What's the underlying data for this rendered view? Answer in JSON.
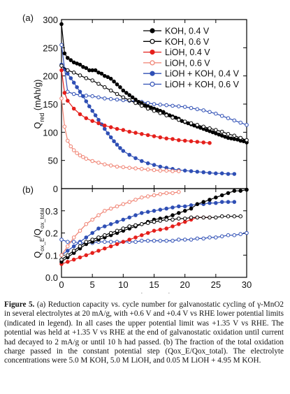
{
  "caption": {
    "label": "Figure 5.",
    "text": "(a) Reduction capacity vs. cycle number for galvanostatic cycling of γ-MnO2 in several electrolytes at 20 mA/g, with +0.6 V and +0.4 V vs RHE lower potential limits (indicated in legend). In all cases the upper potential limit was +1.35 V vs RHE. The potential was held at +1.35 V vs RHE at the end of galvanostatic oxidation until current had decayed to 2 mA/g or until 10 h had passed. (b) The fraction of the total oxidation charge passed in the constant potential step (Qox_E/Qox_total). The electrolyte concentrations were 5.0 M KOH, 5.0 M LiOH, and 0.05 M LiOH + 4.95 M KOH."
  },
  "chart_data": [
    {
      "type": "line",
      "panel_label": "(a)",
      "ylabel": "Q_red (mAh/g)",
      "xlabel": "",
      "xlim": [
        0,
        30
      ],
      "ylim": [
        0,
        300
      ],
      "yticks": [
        0,
        50,
        100,
        150,
        200,
        250,
        300
      ],
      "xticks": [
        0,
        5,
        10,
        15,
        20,
        25,
        30
      ],
      "legend_position": "top-right",
      "series": [
        {
          "name": "KOH, 0.4 V",
          "color": "#000000",
          "marker": "filled",
          "x": [
            0,
            0.5,
            1,
            1.5,
            2,
            2.5,
            3,
            3.5,
            4,
            4.5,
            5,
            5.5,
            6,
            6.5,
            7,
            7.5,
            8,
            8.5,
            9,
            9.5,
            10,
            10.5,
            11,
            11.5,
            12,
            12.5,
            13,
            13.5,
            14,
            14.5,
            15,
            15.5,
            16,
            16.5,
            17,
            17.5,
            18,
            18.5,
            19,
            19.5,
            20,
            20.5,
            21,
            21.5,
            22,
            22.5,
            23,
            23.5,
            24,
            24.5,
            25,
            25.5,
            26,
            26.5,
            27,
            27.5,
            28,
            28.5,
            29,
            29.5,
            30
          ],
          "y": [
            292,
            240,
            232,
            228,
            224,
            222,
            220,
            216,
            214,
            210,
            210,
            210,
            206,
            204,
            200,
            198,
            195,
            190,
            185,
            180,
            174,
            170,
            166,
            162,
            158,
            154,
            152,
            148,
            146,
            144,
            142,
            140,
            138,
            136,
            132,
            130,
            128,
            126,
            124,
            120,
            118,
            116,
            114,
            112,
            110,
            108,
            106,
            104,
            102,
            100,
            98,
            96,
            94,
            92,
            90,
            89,
            88,
            87,
            85,
            84,
            82
          ]
        },
        {
          "name": "KOH, 0.6 V",
          "color": "#000000",
          "marker": "open",
          "x": [
            0,
            1,
            2,
            3,
            4,
            5,
            6,
            7,
            8,
            9,
            10,
            11,
            12,
            13,
            14,
            15,
            16,
            17,
            18,
            19,
            20,
            21,
            22,
            23,
            24,
            25,
            26,
            27,
            28,
            29,
            30
          ],
          "y": [
            218,
            210,
            206,
            201,
            196,
            192,
            186,
            180,
            174,
            168,
            162,
            157,
            152,
            147,
            142,
            138,
            134,
            130,
            126,
            122,
            119,
            116,
            113,
            110,
            107,
            104,
            101,
            97,
            94,
            90,
            86
          ]
        },
        {
          "name": "LiOH, 0.4 V",
          "color": "#e5201c",
          "marker": "filled",
          "x": [
            0,
            0.5,
            1,
            2,
            3,
            4,
            5,
            6,
            7,
            8,
            9,
            10,
            11,
            12,
            13,
            14,
            15,
            16,
            17,
            18,
            19,
            20,
            21,
            22,
            23,
            24
          ],
          "y": [
            210,
            170,
            156,
            142,
            132,
            125,
            120,
            116,
            112,
            109,
            106,
            104,
            101,
            99,
            97,
            95,
            93,
            91,
            89,
            88,
            86,
            85,
            84,
            83,
            82,
            81
          ]
        },
        {
          "name": "LiOH, 0.6 V",
          "color": "#f08070",
          "marker": "open",
          "x": [
            0,
            0.5,
            1,
            1.5,
            2,
            2.5,
            3,
            3.5,
            4,
            5,
            6,
            7,
            8,
            9,
            10,
            11,
            12,
            13,
            14,
            15,
            16,
            17,
            18,
            19
          ],
          "y": [
            160,
            110,
            85,
            75,
            68,
            63,
            59,
            56,
            53,
            49,
            46,
            43,
            41,
            39,
            38,
            37,
            36,
            35,
            34,
            33,
            32,
            32,
            31,
            31
          ]
        },
        {
          "name": "LiOH + KOH, 0.4 V",
          "color": "#2f4fb5",
          "marker": "filled",
          "x": [
            0,
            0.5,
            1,
            1.5,
            2,
            2.5,
            3,
            3.5,
            4,
            4.5,
            5,
            5.5,
            6,
            6.5,
            7,
            7.5,
            8,
            8.5,
            9,
            9.5,
            10,
            11,
            12,
            13,
            14,
            15,
            16,
            17,
            18,
            19,
            20,
            21,
            22,
            23,
            24,
            25,
            26,
            27,
            28
          ],
          "y": [
            220,
            212,
            204,
            196,
            188,
            180,
            172,
            164,
            155,
            146,
            138,
            130,
            122,
            114,
            106,
            98,
            91,
            84,
            78,
            72,
            67,
            60,
            54,
            49,
            45,
            42,
            39,
            37,
            35,
            33,
            32,
            31,
            30,
            29,
            28,
            27,
            27,
            26,
            26
          ]
        },
        {
          "name": "LiOH + KOH, 0.6 V",
          "color": "#2f4fb5",
          "marker": "open",
          "x": [
            0,
            1,
            2,
            3,
            4,
            5,
            6,
            7,
            8,
            9,
            10,
            11,
            12,
            13,
            14,
            15,
            16,
            17,
            18,
            19,
            20,
            21,
            22,
            23,
            24,
            25,
            26,
            27,
            28,
            29,
            30
          ],
          "y": [
            255,
            172,
            168,
            166,
            165,
            164,
            162,
            160,
            159,
            158,
            157,
            156,
            155,
            154,
            152,
            150,
            149,
            148,
            147,
            146,
            145,
            143,
            141,
            139,
            136,
            133,
            129,
            125,
            121,
            117,
            113
          ]
        }
      ]
    },
    {
      "type": "line",
      "panel_label": "(b)",
      "ylabel": "Q_ox_E / Q_ox_total",
      "xlabel": "cycle number",
      "xlim": [
        0,
        30
      ],
      "ylim": [
        0.0,
        0.4
      ],
      "yticks": [
        0.0,
        0.1,
        0.2,
        0.3
      ],
      "xticks": [
        0,
        5,
        10,
        15,
        20,
        25,
        30
      ],
      "series": [
        {
          "name": "KOH, 0.4 V",
          "color": "#000000",
          "marker": "filled",
          "x": [
            0,
            1,
            2,
            3,
            4,
            5,
            6,
            7,
            8,
            9,
            10,
            11,
            12,
            13,
            14,
            15,
            16,
            17,
            18,
            19,
            20,
            21,
            22,
            23,
            24,
            25,
            26,
            27,
            28,
            29,
            30
          ],
          "y": [
            0.07,
            0.09,
            0.11,
            0.13,
            0.15,
            0.16,
            0.17,
            0.18,
            0.19,
            0.2,
            0.21,
            0.22,
            0.23,
            0.24,
            0.25,
            0.26,
            0.265,
            0.27,
            0.28,
            0.29,
            0.3,
            0.31,
            0.33,
            0.34,
            0.35,
            0.36,
            0.37,
            0.38,
            0.39,
            0.39,
            0.395
          ]
        },
        {
          "name": "KOH, 0.6 V",
          "color": "#000000",
          "marker": "open",
          "x": [
            0,
            1,
            2,
            3,
            4,
            5,
            6,
            7,
            8,
            9,
            10,
            11,
            12,
            13,
            14,
            15,
            16,
            17,
            18,
            19,
            20,
            21,
            22,
            23,
            24,
            25,
            26,
            27,
            28,
            29
          ],
          "y": [
            0.08,
            0.1,
            0.12,
            0.14,
            0.16,
            0.17,
            0.18,
            0.19,
            0.2,
            0.21,
            0.22,
            0.23,
            0.235,
            0.24,
            0.245,
            0.25,
            0.255,
            0.26,
            0.26,
            0.265,
            0.265,
            0.27,
            0.27,
            0.27,
            0.27,
            0.27,
            0.275,
            0.275,
            0.275,
            0.275
          ]
        },
        {
          "name": "LiOH, 0.4 V",
          "color": "#e5201c",
          "marker": "filled",
          "x": [
            0,
            1,
            2,
            3,
            4,
            5,
            6,
            7,
            8,
            9,
            10,
            11,
            12,
            13,
            14,
            15,
            16,
            17,
            18,
            19,
            20,
            21,
            22,
            23,
            24
          ],
          "y": [
            0.06,
            0.07,
            0.08,
            0.09,
            0.1,
            0.11,
            0.12,
            0.13,
            0.14,
            0.15,
            0.16,
            0.17,
            0.18,
            0.19,
            0.2,
            0.21,
            0.215,
            0.22,
            0.23,
            0.24,
            0.25,
            0.26,
            0.27,
            0.27,
            0.27
          ]
        },
        {
          "name": "LiOH, 0.6 V",
          "color": "#f08070",
          "marker": "open",
          "x": [
            0,
            1,
            2,
            3,
            4,
            5,
            6,
            7,
            8,
            9,
            10,
            11,
            12,
            13,
            14,
            15,
            16,
            17,
            18,
            19
          ],
          "y": [
            0.1,
            0.14,
            0.18,
            0.21,
            0.24,
            0.26,
            0.28,
            0.3,
            0.31,
            0.32,
            0.33,
            0.34,
            0.35,
            0.36,
            0.365,
            0.37,
            0.375,
            0.38,
            0.38,
            0.385
          ]
        },
        {
          "name": "LiOH + KOH, 0.4 V",
          "color": "#2f4fb5",
          "marker": "filled",
          "x": [
            0,
            1,
            2,
            3,
            4,
            5,
            6,
            7,
            8,
            9,
            10,
            11,
            12,
            13,
            14,
            15,
            16,
            17,
            18,
            19,
            20,
            21,
            22,
            23,
            24,
            25,
            26,
            27,
            28
          ],
          "y": [
            0.1,
            0.12,
            0.14,
            0.16,
            0.18,
            0.2,
            0.22,
            0.23,
            0.24,
            0.25,
            0.26,
            0.27,
            0.28,
            0.29,
            0.295,
            0.3,
            0.305,
            0.31,
            0.315,
            0.32,
            0.32,
            0.325,
            0.33,
            0.33,
            0.335,
            0.335,
            0.34,
            0.34,
            0.34
          ]
        },
        {
          "name": "LiOH + KOH, 0.6 V",
          "color": "#2f4fb5",
          "marker": "open",
          "x": [
            0,
            1,
            2,
            3,
            4,
            5,
            6,
            7,
            8,
            9,
            10,
            11,
            12,
            13,
            14,
            15,
            16,
            17,
            18,
            19,
            20,
            21,
            22,
            23,
            24,
            25,
            26,
            27,
            28,
            29,
            30
          ],
          "y": [
            0.17,
            0.16,
            0.16,
            0.155,
            0.155,
            0.155,
            0.16,
            0.16,
            0.16,
            0.16,
            0.16,
            0.16,
            0.16,
            0.165,
            0.165,
            0.165,
            0.165,
            0.165,
            0.165,
            0.17,
            0.17,
            0.17,
            0.175,
            0.175,
            0.18,
            0.18,
            0.185,
            0.19,
            0.19,
            0.195,
            0.2
          ]
        }
      ]
    }
  ]
}
